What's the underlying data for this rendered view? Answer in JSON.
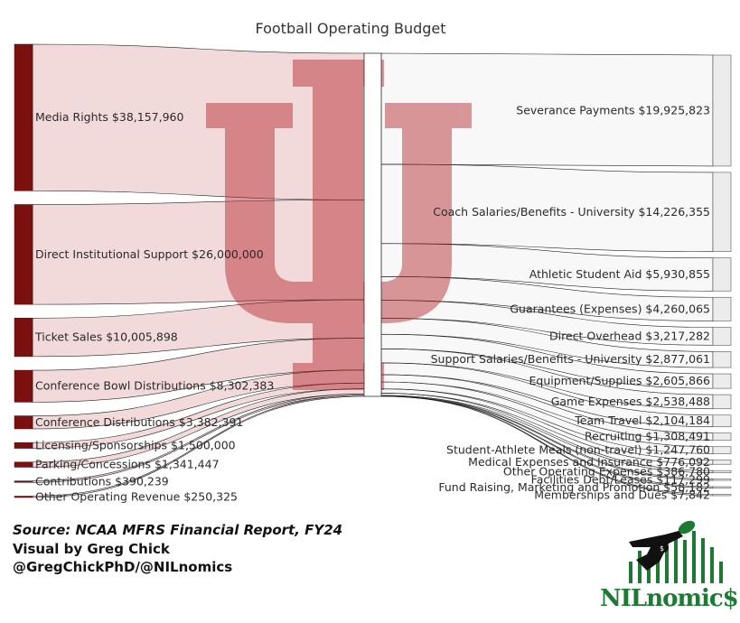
{
  "chart_data": {
    "type": "sankey",
    "title": "Football Operating Budget",
    "revenues": [
      {
        "label": "Media Rights",
        "value": 38157960
      },
      {
        "label": "Direct Institutional Support",
        "value": 26000000
      },
      {
        "label": "Ticket Sales",
        "value": 10005898
      },
      {
        "label": "Conference Bowl Distributions",
        "value": 8302383
      },
      {
        "label": "Conference Distributions",
        "value": 3382391
      },
      {
        "label": "Licensing/Sponsorships",
        "value": 1500000
      },
      {
        "label": "Parking/Concessions",
        "value": 1341447
      },
      {
        "label": "Contributions",
        "value": 390239
      },
      {
        "label": "Other Operating Revenue",
        "value": 250325
      }
    ],
    "expenses": [
      {
        "label": "Severance Payments",
        "value": 19925823
      },
      {
        "label": "Coach Salaries/Benefits - University",
        "value": 14226355
      },
      {
        "label": "Athletic Student Aid",
        "value": 5930855
      },
      {
        "label": "Guarantees (Expenses)",
        "value": 4260065
      },
      {
        "label": "Direct Overhead",
        "value": 3217282
      },
      {
        "label": "Support Salaries/Benefits - University",
        "value": 2877061
      },
      {
        "label": "Equipment/Supplies",
        "value": 2605866
      },
      {
        "label": "Game Expenses",
        "value": 2538488
      },
      {
        "label": "Team Travel",
        "value": 2104184
      },
      {
        "label": "Recruiting",
        "value": 1308491
      },
      {
        "label": "Student-Athlete Meals (non-travel)",
        "value": 1247760
      },
      {
        "label": "Medical Expenses and Insurance",
        "value": 776092
      },
      {
        "label": "Other Operating Expenses",
        "value": 386780
      },
      {
        "label": "Facilities Debt/Leases",
        "value": 117299
      },
      {
        "label": "Fund Raising, Marketing and Promotion",
        "value": 58182
      },
      {
        "label": "Memberships and Dues",
        "value": 7842
      }
    ],
    "colors": {
      "revenue_node": "#7a1010",
      "expense_node": "#ececec",
      "watermark": "#b21f24",
      "logo_green": "#1d7a33"
    }
  },
  "footer": {
    "source": "Source: NCAA MFRS Financial Report, FY24",
    "visual": "Visual by Greg Chick",
    "handle": "@GregChickPhD/@NILnomics"
  },
  "logo": {
    "text": "NILnomic$"
  }
}
